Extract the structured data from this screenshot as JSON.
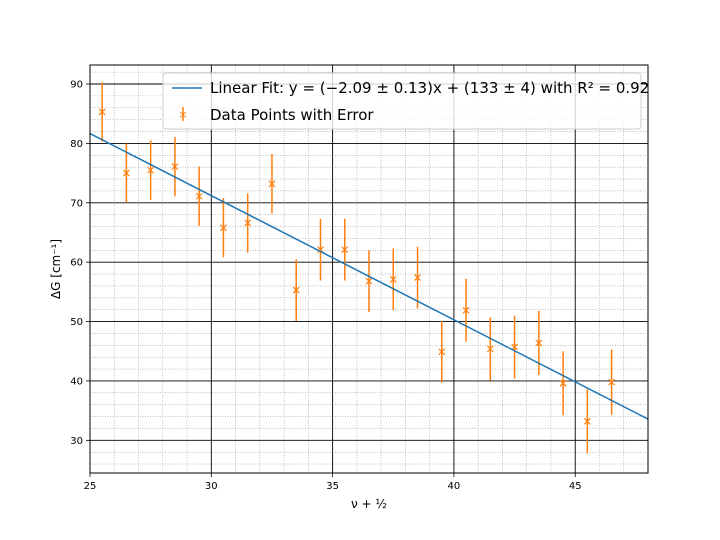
{
  "chart_data": {
    "type": "scatter",
    "xlabel": "ν + ½",
    "ylabel": "ΔG [cm⁻¹]",
    "xlim": [
      25,
      48
    ],
    "ylim": [
      24.5,
      93.2
    ],
    "xticks": [
      25,
      30,
      35,
      40,
      45
    ],
    "yticks": [
      30,
      40,
      50,
      60,
      70,
      80,
      90
    ],
    "grid": true,
    "minor_grid": true,
    "legend_position": "top-right",
    "series": [
      {
        "name": "Linear Fit: y = (−2.09 ± 0.13)x + (133 ± 4) with R² = 0.92",
        "kind": "line",
        "color": "#1f77b4",
        "slope": -2.09,
        "intercept": 133.9,
        "x": [
          25,
          48
        ]
      },
      {
        "name": "Data Points with Error",
        "kind": "errorbar",
        "color": "#ff7f0e",
        "marker": "x",
        "x": [
          25.5,
          26.5,
          27.5,
          28.5,
          29.5,
          30.5,
          31.5,
          32.5,
          33.5,
          34.5,
          35.5,
          36.5,
          37.5,
          38.5,
          39.5,
          40.5,
          41.5,
          42.5,
          43.5,
          44.5,
          45.5,
          46.5
        ],
        "y": [
          85.3,
          75.0,
          75.5,
          76.1,
          71.1,
          65.8,
          66.6,
          73.2,
          55.3,
          62.1,
          62.1,
          56.8,
          57.1,
          57.4,
          44.9,
          51.9,
          45.4,
          45.7,
          46.4,
          39.6,
          33.2,
          39.8
        ],
        "yerr": [
          5.0,
          5.0,
          5.0,
          5.0,
          5.0,
          5.0,
          5.0,
          5.0,
          5.2,
          5.2,
          5.2,
          5.2,
          5.2,
          5.2,
          5.2,
          5.3,
          5.3,
          5.3,
          5.4,
          5.4,
          5.4,
          5.5
        ]
      }
    ]
  }
}
